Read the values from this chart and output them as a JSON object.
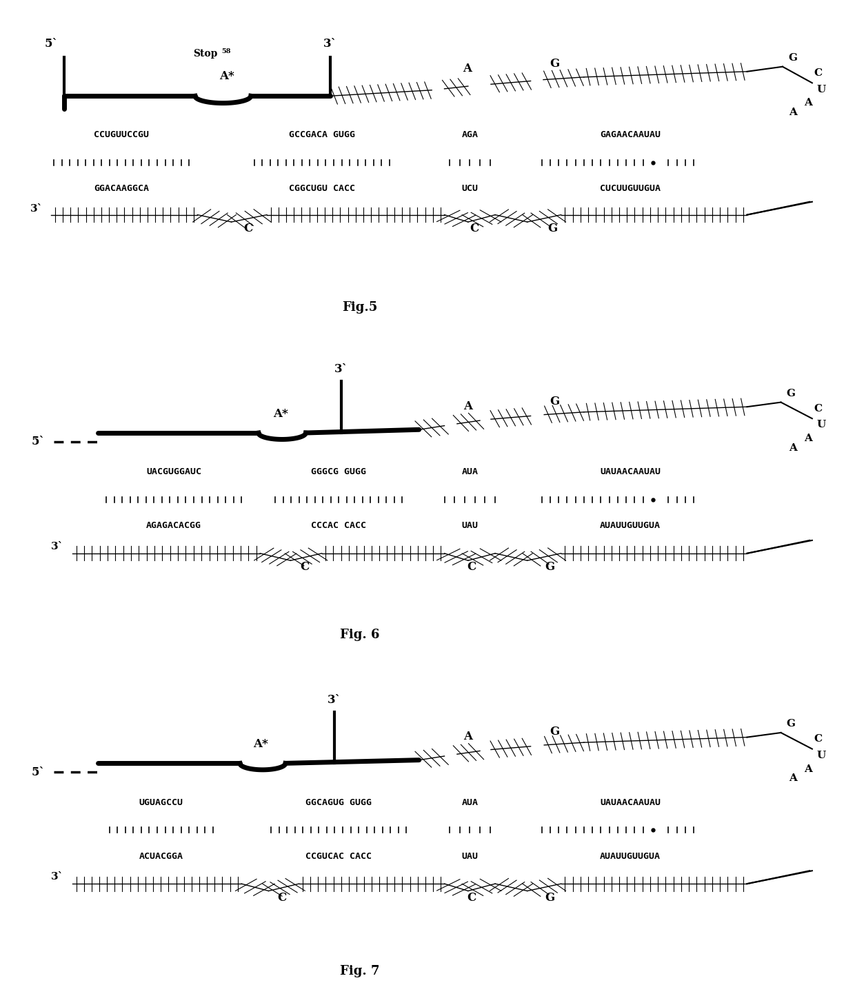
{
  "fig5": {
    "caption": "Fig.5",
    "top1": "CCUGUUCCGU",
    "top2": "GCCGACA GUGG",
    "top3": "AGA",
    "top4": "GAGAACAAUAU",
    "bot1": "GGACAAGGCA",
    "bot2": "CGGCUGU CACC",
    "bot3": "UCU",
    "bot4": "CUCUUGUUGUA",
    "stop_label": "Stop",
    "stop_sup": "58",
    "Astar": "A*",
    "five_prime": "5`",
    "three_prime1": "3`",
    "three_prime2": "3`",
    "label_A": "A",
    "label_G": "G",
    "label_C1": "C",
    "label_C2": "C",
    "label_G2": "G",
    "right_stem": [
      "G",
      "C",
      "U",
      "A",
      "A"
    ]
  },
  "fig6": {
    "caption": "Fig. 6",
    "top1": "UACGUGGAUC",
    "top2": "GGGCG GUGG",
    "top3": "AUA",
    "top4": "UAUAACAAUAU",
    "bot1": "AGAGACACGG",
    "bot2": "CCCAC CACC",
    "bot3": "UAU",
    "bot4": "AUAUUGUUGUA",
    "Astar": "A*",
    "five_prime": "5`",
    "three_prime": "3`",
    "label_A": "A",
    "label_G": "G",
    "label_C1": "C",
    "label_C2": "C",
    "label_G2": "G",
    "right_stem": [
      "G",
      "C",
      "U",
      "A",
      "A"
    ]
  },
  "fig7": {
    "caption": "Fig. 7",
    "top1": "UGUAGCCU",
    "top2": "GGCAGUG GUGG",
    "top3": "AUA",
    "top4": "UAUAACAAUAU",
    "bot1": "ACUACGGA",
    "bot2": "CCGUCAC CACC",
    "bot3": "UAU",
    "bot4": "AUAUUGUUGUA",
    "Astar": "A*",
    "five_prime": "5`",
    "three_prime": "3`",
    "label_A": "A",
    "label_G": "G",
    "label_C1": "C",
    "label_C2": "C",
    "label_G2": "G",
    "right_stem": [
      "G",
      "C",
      "U",
      "A",
      "A"
    ]
  }
}
